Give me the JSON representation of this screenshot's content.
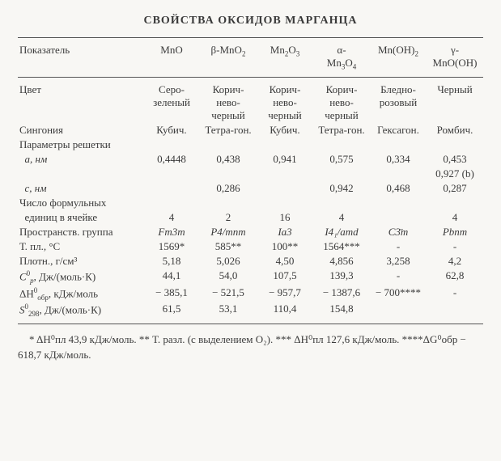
{
  "title": "СВОЙСТВА ОКСИДОВ МАРГАНЦА",
  "header": {
    "param": "Показатель",
    "c1": "MnO",
    "c2": "β-MnO",
    "c2_sub": "2",
    "c3": "Mn",
    "c3_sub1": "2",
    "c3_mid": "O",
    "c3_sub2": "3",
    "c4_pre": "α-",
    "c4": "Mn",
    "c4_sub1": "3",
    "c4_mid": "O",
    "c4_sub2": "4",
    "c5": "Mn(OH)",
    "c5_sub": "2",
    "c6_pre": "γ-",
    "c6": "MnO(OH)"
  },
  "rows": {
    "color_label": "Цвет",
    "color": [
      "Серо-зеленый",
      "Корич-нево-черный",
      "Корич-нево-черный",
      "Корич-нево-черный",
      "Бледно-розовый",
      "Черный"
    ],
    "syngony_label": "Сингония",
    "syngony": [
      "Кубич.",
      "Тетра-гон.",
      "Кубич.",
      "Тетра-гон.",
      "Гексагон.",
      "Ромбич."
    ],
    "lattice_label": "Параметры решетки",
    "a_label": "a, нм",
    "a": [
      "0,4448",
      "0,438",
      "0,941",
      "0,575",
      "0,334",
      "0,453"
    ],
    "a_extra6": "0,927 (b)",
    "c_label": "c, нм",
    "c": [
      "",
      "0,286",
      "",
      "0,942",
      "0,468",
      "0,287"
    ],
    "z_label1": "Число формульных",
    "z_label2": "единиц в ячейке",
    "z": [
      "4",
      "2",
      "16",
      "4",
      "",
      "4"
    ],
    "sg_label": "Пространств. группа",
    "sg": [
      "Fm3m",
      "P4/mnm",
      "Ia3",
      "I4₁/amd",
      "C3̄m",
      "Pbnm"
    ],
    "tmelt_label": "Т. пл., °С",
    "tmelt": [
      "1569*",
      "585**",
      "100**",
      "1564***",
      "-",
      "-"
    ],
    "dens_label": "Плотн., г/см³",
    "dens": [
      "5,18",
      "5,026",
      "4,50",
      "4,856",
      "3,258",
      "4,2"
    ],
    "cp_label_a": "C",
    "cp_label_sup": "0",
    "cp_label_sub": "p",
    "cp_label_b": ", Дж/(моль·К)",
    "cp": [
      "44,1",
      "54,0",
      "107,5",
      "139,3",
      "-",
      "62,8"
    ],
    "dh_label_a": "ΔH",
    "dh_label_sup": "0",
    "dh_label_sub": "обр",
    "dh_label_b": ", кДж/моль",
    "dh": [
      "− 385,1",
      "− 521,5",
      "− 957,7",
      "− 1387,6",
      "− 700****",
      "-"
    ],
    "s_label_a": "S",
    "s_label_sup": "0",
    "s_label_sub": "298",
    "s_label_b": ", Дж/(моль·К)",
    "s": [
      "61,5",
      "53,1",
      "110,4",
      "154,8",
      "",
      ""
    ]
  },
  "footnotes": "* ΔH⁰пл 43,9 кДж/моль. ** Т. разл. (с выделением O₂). *** ΔH⁰пл 127,6 кДж/моль. ****ΔG⁰обр − 618,7 кДж/моль."
}
